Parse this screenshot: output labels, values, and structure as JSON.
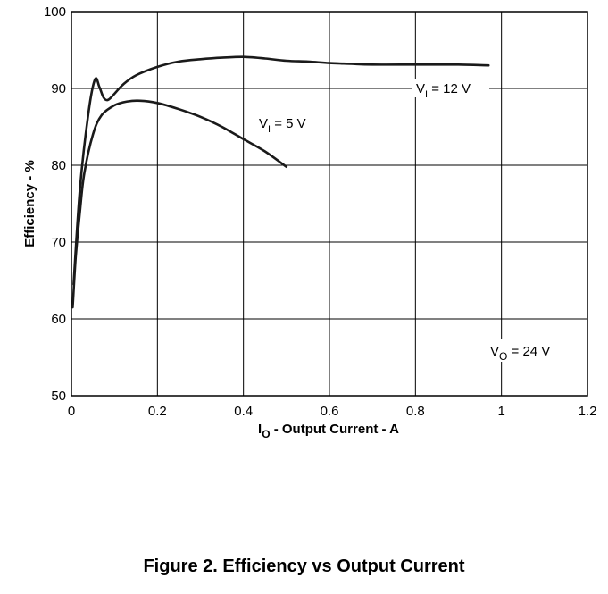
{
  "chart_data": {
    "type": "line",
    "xlabel_main": "I",
    "xlabel_sub": "O",
    "xlabel_rest": " - Output Current - A",
    "ylabel": "Efficiency - %",
    "xlim": [
      0,
      1.2
    ],
    "ylim": [
      50,
      100
    ],
    "x_ticks": [
      "0",
      "0.2",
      "0.4",
      "0.6",
      "0.8",
      "1",
      "1.2"
    ],
    "y_ticks": [
      "50",
      "60",
      "70",
      "80",
      "90",
      "100"
    ],
    "grid": true,
    "series": [
      {
        "name": "VI = 12 V",
        "label_main": "V",
        "label_sub": "I",
        "label_rest": " = 12 V",
        "x": [
          0.005,
          0.02,
          0.04,
          0.055,
          0.065,
          0.075,
          0.085,
          0.1,
          0.12,
          0.15,
          0.2,
          0.25,
          0.3,
          0.35,
          0.4,
          0.45,
          0.5,
          0.55,
          0.6,
          0.65,
          0.7,
          0.8,
          0.9,
          0.97
        ],
        "y": [
          64.5,
          77,
          87,
          91.2,
          90.2,
          88.8,
          88.5,
          89.3,
          90.5,
          91.7,
          92.8,
          93.5,
          93.8,
          94,
          94.1,
          93.9,
          93.6,
          93.5,
          93.3,
          93.2,
          93.1,
          93.1,
          93.1,
          93
        ]
      },
      {
        "name": "VI = 5 V",
        "label_main": "V",
        "label_sub": "I",
        "label_rest": " = 5 V",
        "x": [
          0.003,
          0.01,
          0.02,
          0.03,
          0.05,
          0.07,
          0.1,
          0.13,
          0.16,
          0.2,
          0.25,
          0.3,
          0.35,
          0.4,
          0.45,
          0.5
        ],
        "y": [
          61.5,
          68,
          74,
          79,
          84,
          86.5,
          87.8,
          88.3,
          88.4,
          88.1,
          87.3,
          86.3,
          85,
          83.4,
          81.8,
          79.8
        ]
      }
    ],
    "annotation": {
      "main": "V",
      "sub": "O",
      "rest": " = 24 V"
    }
  },
  "caption": "Figure 2. Efficiency vs Output Current"
}
